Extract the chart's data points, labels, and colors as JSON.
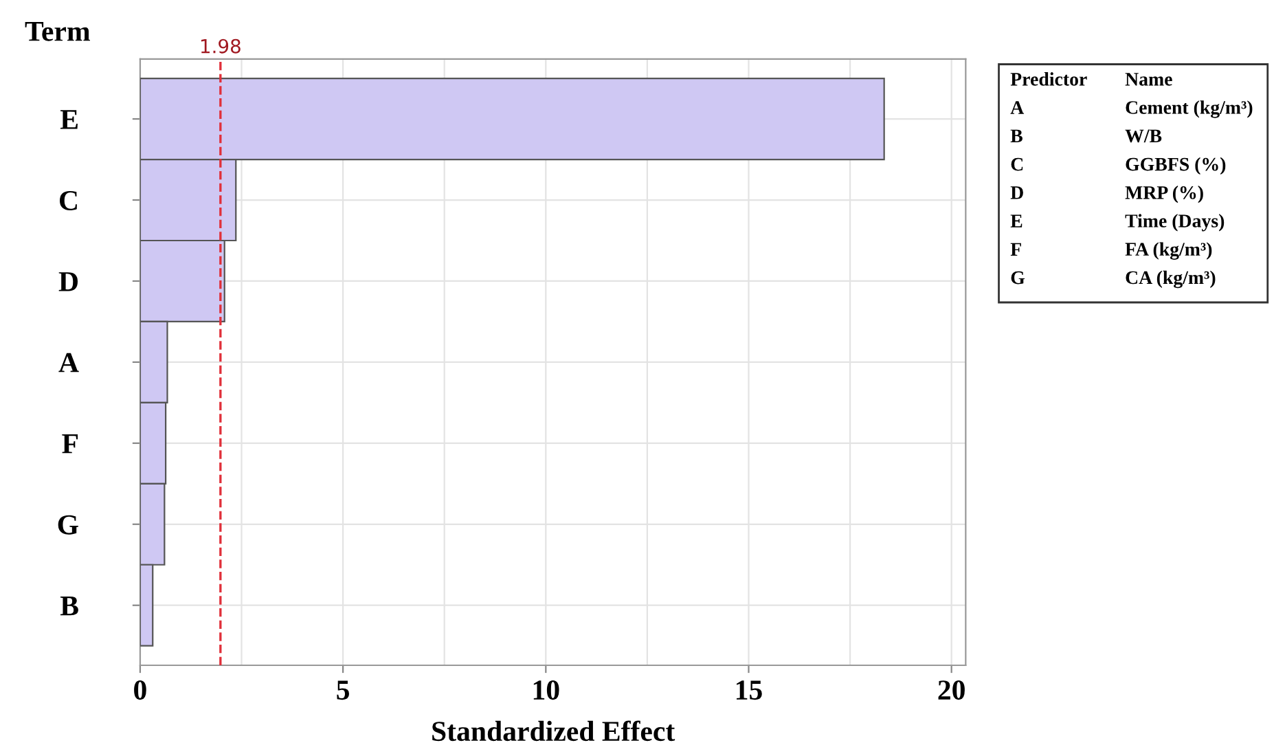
{
  "chart_data": {
    "type": "bar",
    "orientation": "horizontal",
    "ylabel": "Term",
    "xlabel": "Standardized Effect",
    "categories": [
      "E",
      "C",
      "D",
      "A",
      "F",
      "G",
      "B"
    ],
    "values": [
      18.34,
      2.36,
      2.08,
      0.67,
      0.63,
      0.6,
      0.31
    ],
    "color": "#cfc8f3",
    "xlim": [
      0,
      20.35
    ],
    "xticks": [
      0,
      {
        "value": 2.5,
        "label": null
      },
      5,
      {
        "value": 7.5,
        "label": null
      },
      10,
      {
        "value": 12.5,
        "label": null
      },
      15,
      {
        "value": 17.5,
        "label": null
      },
      20
    ],
    "grid": true,
    "ref_lines": [
      {
        "axis": "x",
        "value": 1.98,
        "label": "1.98",
        "color": "#e0303a",
        "line_style": "dashed"
      }
    ],
    "annotations": [
      "Predictor",
      "Name",
      "A",
      "Cement (kg/m³)",
      "B",
      "W/B",
      "C",
      "GGBFS (%)",
      "D",
      "MRP (%)",
      "E",
      "Time (Days)",
      "F",
      "FA (kg/m³)",
      "G",
      "CA (kg/m³)"
    ]
  }
}
